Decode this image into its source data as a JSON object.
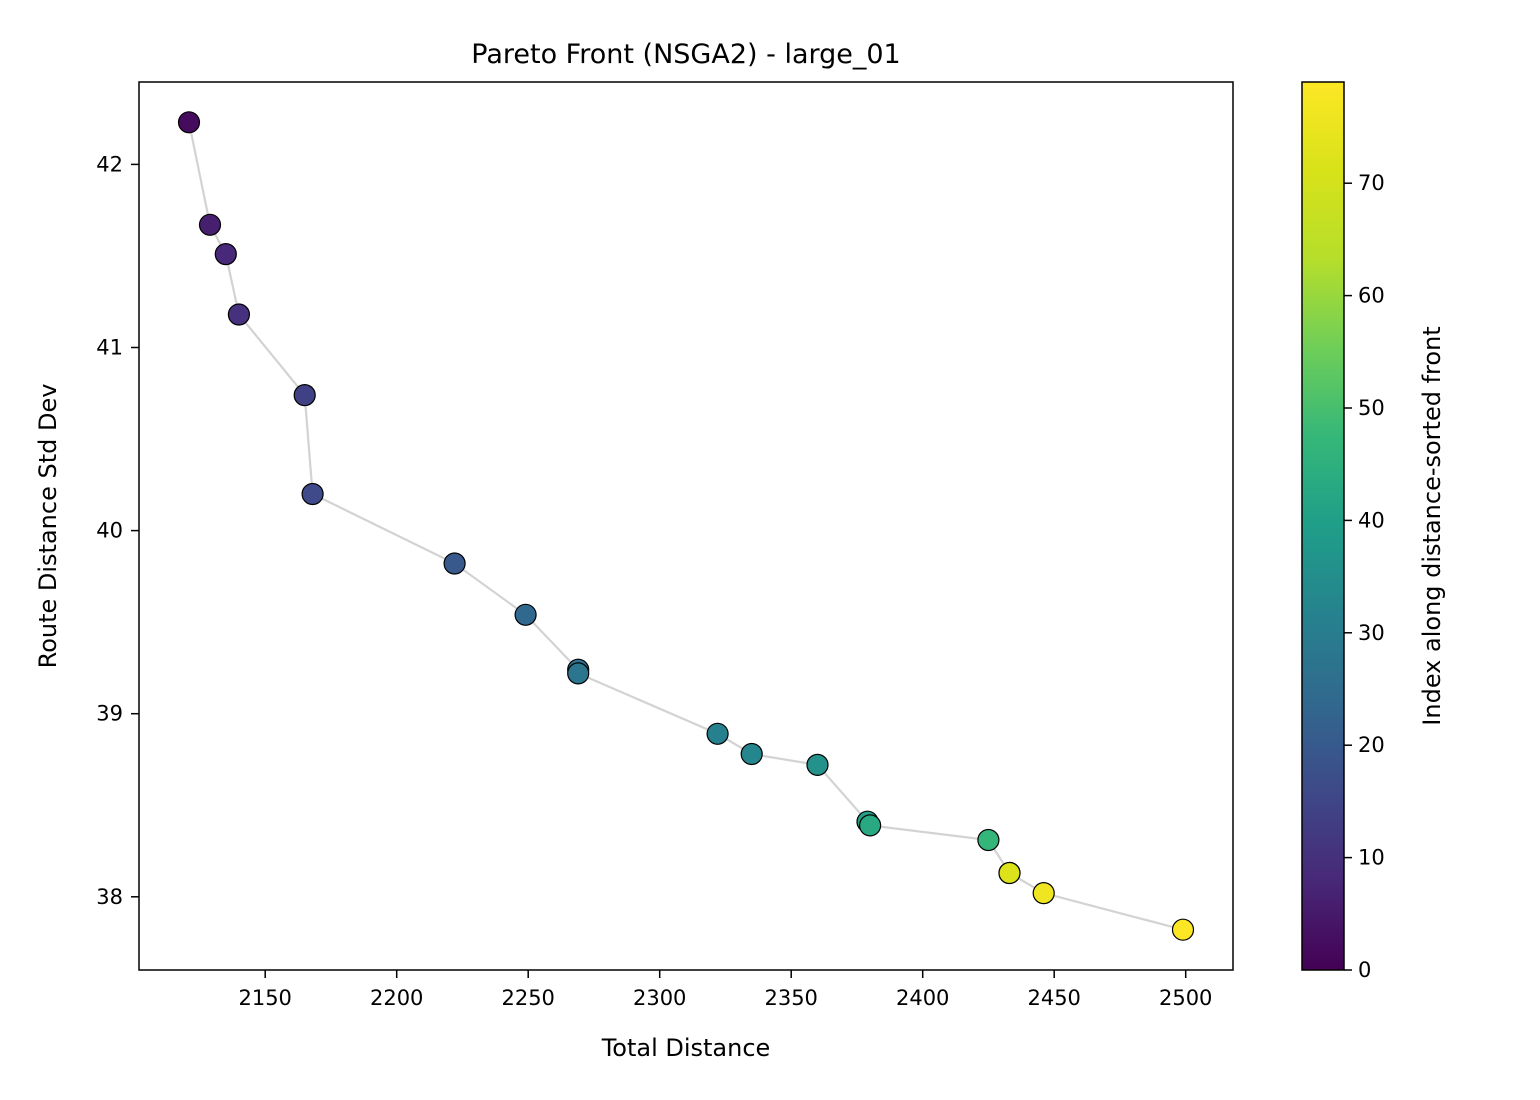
{
  "chart_data": {
    "type": "scatter",
    "title": "Pareto Front (NSGA2) - large_01",
    "xlabel": "Total Distance",
    "ylabel": "Route Distance Std Dev",
    "xlim": [
      2102,
      2518
    ],
    "ylim": [
      37.6,
      42.45
    ],
    "xticks": [
      2150,
      2200,
      2250,
      2300,
      2350,
      2400,
      2450,
      2500
    ],
    "yticks": [
      38,
      39,
      40,
      41,
      42
    ],
    "grid": false,
    "connecting_line": true,
    "line_color": "#d3d3d3",
    "colormap": "viridis",
    "colorbar": {
      "label": "Index along distance-sorted front",
      "range": [
        0,
        79
      ],
      "ticks": [
        0,
        10,
        20,
        30,
        40,
        50,
        60,
        70
      ]
    },
    "series": [
      {
        "points": [
          {
            "x": 2121,
            "y": 42.23,
            "c": 2
          },
          {
            "x": 2129,
            "y": 41.67,
            "c": 6
          },
          {
            "x": 2135,
            "y": 41.51,
            "c": 8
          },
          {
            "x": 2140,
            "y": 41.18,
            "c": 10
          },
          {
            "x": 2165,
            "y": 40.74,
            "c": 14
          },
          {
            "x": 2168,
            "y": 40.2,
            "c": 16
          },
          {
            "x": 2222,
            "y": 39.82,
            "c": 20
          },
          {
            "x": 2249,
            "y": 39.54,
            "c": 24
          },
          {
            "x": 2269,
            "y": 39.24,
            "c": 26
          },
          {
            "x": 2269,
            "y": 39.22,
            "c": 28
          },
          {
            "x": 2322,
            "y": 38.89,
            "c": 31
          },
          {
            "x": 2335,
            "y": 38.78,
            "c": 33
          },
          {
            "x": 2360,
            "y": 38.72,
            "c": 36
          },
          {
            "x": 2379,
            "y": 38.41,
            "c": 40
          },
          {
            "x": 2380,
            "y": 38.39,
            "c": 43
          },
          {
            "x": 2425,
            "y": 38.31,
            "c": 47
          },
          {
            "x": 2433,
            "y": 38.13,
            "c": 70
          },
          {
            "x": 2433,
            "y": 38.13,
            "c": 72
          },
          {
            "x": 2446,
            "y": 38.02,
            "c": 76
          },
          {
            "x": 2499,
            "y": 37.82,
            "c": 79
          }
        ]
      }
    ]
  }
}
